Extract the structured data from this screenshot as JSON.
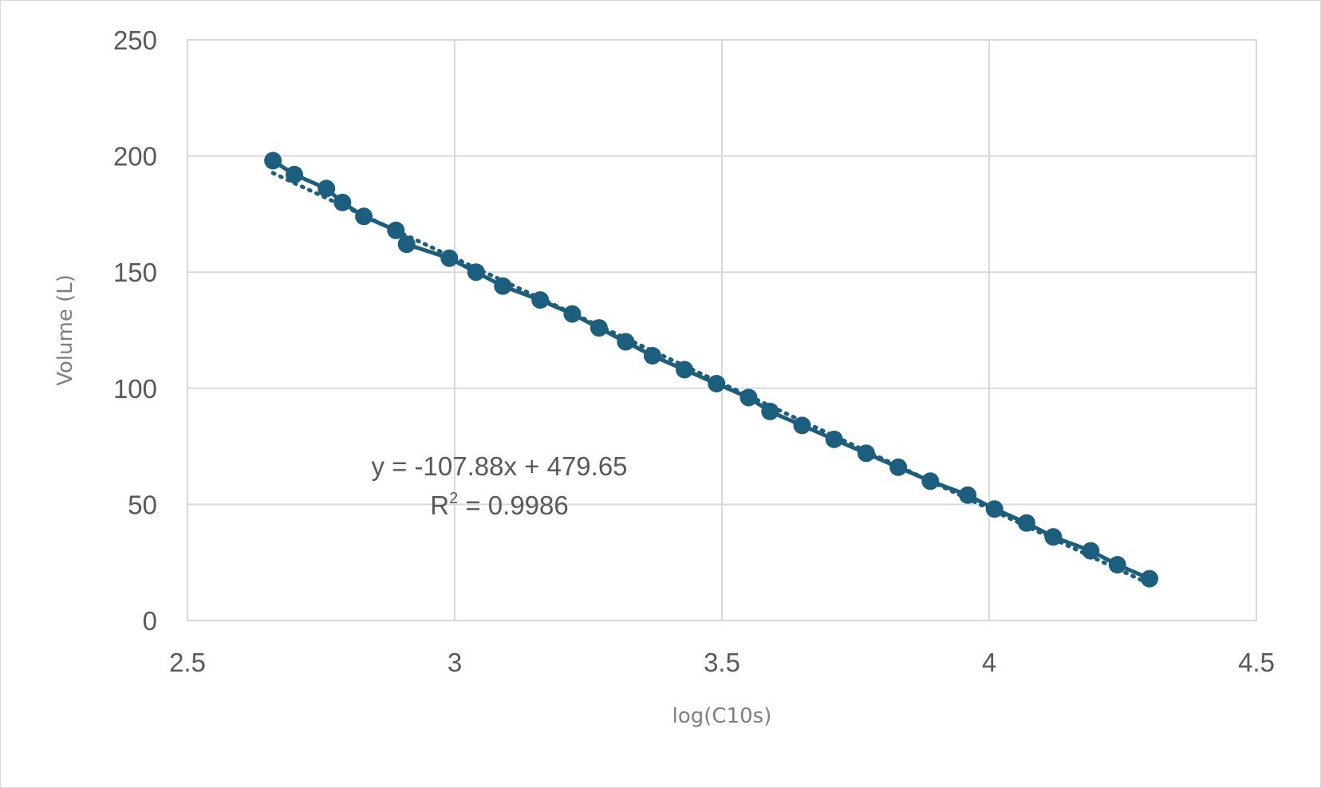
{
  "chart_data": {
    "type": "scatter",
    "xlabel": "log(C10s)",
    "ylabel": "Volume (L)",
    "xlim": [
      2.5,
      4.5
    ],
    "ylim": [
      0,
      250
    ],
    "x_ticks": [
      2.5,
      3,
      3.5,
      4,
      4.5
    ],
    "x_tick_labels": [
      "2.5",
      "3",
      "3.5",
      "4",
      "4.5"
    ],
    "y_ticks": [
      0,
      50,
      100,
      150,
      200,
      250
    ],
    "y_tick_labels": [
      "0",
      "50",
      "100",
      "150",
      "200",
      "250"
    ],
    "grid": true,
    "legend": "none",
    "series": [
      {
        "marker_color": "#1b5e7e",
        "points": [
          [
            2.66,
            198
          ],
          [
            2.7,
            192
          ],
          [
            2.76,
            186
          ],
          [
            2.79,
            180
          ],
          [
            2.83,
            174
          ],
          [
            2.89,
            168
          ],
          [
            2.91,
            162
          ],
          [
            2.99,
            156
          ],
          [
            3.04,
            150
          ],
          [
            3.09,
            144
          ],
          [
            3.16,
            138
          ],
          [
            3.22,
            132
          ],
          [
            3.27,
            126
          ],
          [
            3.32,
            120
          ],
          [
            3.37,
            114
          ],
          [
            3.43,
            108
          ],
          [
            3.49,
            102
          ],
          [
            3.55,
            96
          ],
          [
            3.59,
            90
          ],
          [
            3.65,
            84
          ],
          [
            3.71,
            78
          ],
          [
            3.77,
            72
          ],
          [
            3.83,
            66
          ],
          [
            3.89,
            60
          ],
          [
            3.96,
            54
          ],
          [
            4.01,
            48
          ],
          [
            4.07,
            42
          ],
          [
            4.12,
            36
          ],
          [
            4.19,
            30
          ],
          [
            4.24,
            24
          ],
          [
            4.3,
            18
          ]
        ]
      }
    ],
    "trendline": {
      "type": "linear",
      "slope": -107.88,
      "intercept": 479.65,
      "style": "dotted",
      "equation_text": "y = -107.88x + 479.65",
      "r2_prefix": "R",
      "r2_exponent": "2",
      "r2_value": " = 0.9986"
    }
  }
}
